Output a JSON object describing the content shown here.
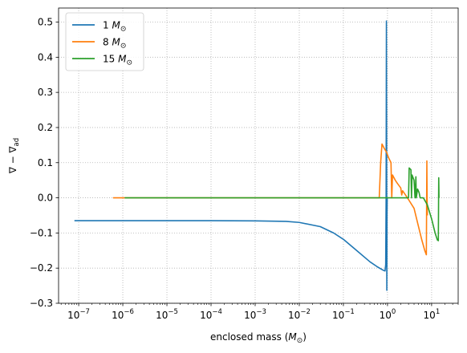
{
  "chart_data": {
    "type": "line",
    "xscale": "log",
    "xlabel": "enclosed mass (M⊙)",
    "xlabel_parts": [
      "enclosed mass (",
      "M",
      "⊙",
      ")"
    ],
    "ylabel": "∇ − ∇ad",
    "ylabel_parts": [
      "∇ − ∇",
      "ad"
    ],
    "xlim": [
      3.5e-08,
      40
    ],
    "ylim": [
      -0.3,
      0.54
    ],
    "xticks": [
      1e-07,
      1e-06,
      1e-05,
      0.0001,
      0.001,
      0.01,
      0.1,
      1,
      10
    ],
    "xtick_labels": [
      {
        "base": "10",
        "exp": "−7"
      },
      {
        "base": "10",
        "exp": "−6"
      },
      {
        "base": "10",
        "exp": "−5"
      },
      {
        "base": "10",
        "exp": "−4"
      },
      {
        "base": "10",
        "exp": "−3"
      },
      {
        "base": "10",
        "exp": "−2"
      },
      {
        "base": "10",
        "exp": "−1"
      },
      {
        "base": "10",
        "exp": "0"
      },
      {
        "base": "10",
        "exp": "1"
      }
    ],
    "yticks": [
      -0.3,
      -0.2,
      -0.1,
      0.0,
      0.1,
      0.2,
      0.3,
      0.4,
      0.5
    ],
    "ytick_labels": [
      "−0.3",
      "−0.2",
      "−0.1",
      "0.0",
      "0.1",
      "0.2",
      "0.3",
      "0.4",
      "0.5"
    ],
    "grid": true,
    "legend_position": "top-left",
    "series": [
      {
        "name": "1 M⊙",
        "legend_num": "1",
        "color": "#1f77b4",
        "points": [
          [
            8e-08,
            -0.065
          ],
          [
            1e-06,
            -0.065
          ],
          [
            0.0001,
            -0.065
          ],
          [
            0.001,
            -0.0655
          ],
          [
            0.005,
            -0.067
          ],
          [
            0.01,
            -0.07
          ],
          [
            0.03,
            -0.082
          ],
          [
            0.06,
            -0.1
          ],
          [
            0.1,
            -0.118
          ],
          [
            0.2,
            -0.15
          ],
          [
            0.4,
            -0.182
          ],
          [
            0.6,
            -0.197
          ],
          [
            0.8,
            -0.206
          ],
          [
            0.88,
            -0.208
          ],
          [
            0.91,
            -0.19
          ],
          [
            0.93,
            0.0
          ],
          [
            0.945,
            0.503
          ],
          [
            0.955,
            0.2
          ],
          [
            0.965,
            -0.263
          ],
          [
            0.975,
            -0.05
          ],
          [
            0.985,
            0.0
          ],
          [
            1.0,
            0.0
          ]
        ]
      },
      {
        "name": "8 M⊙",
        "legend_num": "8",
        "color": "#ff7f0e",
        "points": [
          [
            6e-07,
            0.0
          ],
          [
            1e-06,
            0.0
          ],
          [
            0.001,
            0.0
          ],
          [
            0.1,
            0.0
          ],
          [
            0.65,
            0.0
          ],
          [
            0.7,
            0.1
          ],
          [
            0.75,
            0.153
          ],
          [
            0.85,
            0.14
          ],
          [
            0.95,
            0.13
          ],
          [
            1.05,
            0.115
          ],
          [
            1.2,
            0.1
          ],
          [
            1.25,
            0.0
          ],
          [
            1.3,
            0.065
          ],
          [
            1.5,
            0.05
          ],
          [
            1.7,
            0.04
          ],
          [
            2.0,
            0.028
          ],
          [
            2.1,
            0.008
          ],
          [
            2.2,
            0.02
          ],
          [
            2.5,
            0.01
          ],
          [
            3.0,
            -0.005
          ],
          [
            4.0,
            -0.03
          ],
          [
            5.0,
            -0.08
          ],
          [
            6.0,
            -0.12
          ],
          [
            7.0,
            -0.15
          ],
          [
            7.6,
            -0.162
          ],
          [
            7.8,
            0.105
          ],
          [
            7.9,
            0.0
          ],
          [
            8.0,
            -0.05
          ]
        ]
      },
      {
        "name": "15 M⊙",
        "legend_num": "15",
        "color": "#2ca02c",
        "points": [
          [
            1.1e-06,
            0.0
          ],
          [
            1e-05,
            0.0
          ],
          [
            0.001,
            0.0
          ],
          [
            0.1,
            0.0
          ],
          [
            1.0,
            0.0
          ],
          [
            3.0,
            0.0
          ],
          [
            3.1,
            0.085
          ],
          [
            3.4,
            0.08
          ],
          [
            3.5,
            0.0
          ],
          [
            3.6,
            0.065
          ],
          [
            4.0,
            0.05
          ],
          [
            4.2,
            0.0
          ],
          [
            4.4,
            0.06
          ],
          [
            4.5,
            0.0
          ],
          [
            4.8,
            0.025
          ],
          [
            5.2,
            0.015
          ],
          [
            5.5,
            0.0
          ],
          [
            6.5,
            0.0
          ],
          [
            8.0,
            -0.02
          ],
          [
            10.0,
            -0.06
          ],
          [
            12.0,
            -0.1
          ],
          [
            13.5,
            -0.12
          ],
          [
            14.2,
            -0.122
          ],
          [
            14.5,
            0.057
          ],
          [
            14.7,
            0.0
          ]
        ]
      }
    ]
  }
}
